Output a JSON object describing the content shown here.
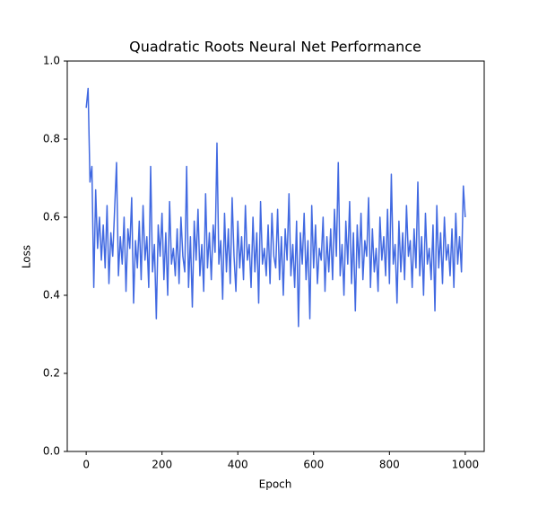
{
  "chart_data": {
    "type": "line",
    "title": "Quadratic Roots Neural Net Performance",
    "x_label": "Epoch",
    "y_label": "Loss",
    "x": [
      0,
      5,
      10,
      15,
      20,
      25,
      30,
      35,
      40,
      45,
      50,
      55,
      60,
      65,
      70,
      75,
      80,
      85,
      90,
      95,
      100,
      105,
      110,
      115,
      120,
      125,
      130,
      135,
      140,
      145,
      150,
      155,
      160,
      165,
      170,
      175,
      180,
      185,
      190,
      195,
      200,
      205,
      210,
      215,
      220,
      225,
      230,
      235,
      240,
      245,
      250,
      255,
      260,
      265,
      270,
      275,
      280,
      285,
      290,
      295,
      300,
      305,
      310,
      315,
      320,
      325,
      330,
      335,
      340,
      345,
      350,
      355,
      360,
      365,
      370,
      375,
      380,
      385,
      390,
      395,
      400,
      405,
      410,
      415,
      420,
      425,
      430,
      435,
      440,
      445,
      450,
      455,
      460,
      465,
      470,
      475,
      480,
      485,
      490,
      495,
      500,
      505,
      510,
      515,
      520,
      525,
      530,
      535,
      540,
      545,
      550,
      555,
      560,
      565,
      570,
      575,
      580,
      585,
      590,
      595,
      600,
      605,
      610,
      615,
      620,
      625,
      630,
      635,
      640,
      645,
      650,
      655,
      660,
      665,
      670,
      675,
      680,
      685,
      690,
      695,
      700,
      705,
      710,
      715,
      720,
      725,
      730,
      735,
      740,
      745,
      750,
      755,
      760,
      765,
      770,
      775,
      780,
      785,
      790,
      795,
      800,
      805,
      810,
      815,
      820,
      825,
      830,
      835,
      840,
      845,
      850,
      855,
      860,
      865,
      870,
      875,
      880,
      885,
      890,
      895,
      900,
      905,
      910,
      915,
      920,
      925,
      930,
      935,
      940,
      945,
      950,
      955,
      960,
      965,
      970,
      975,
      980,
      985,
      990,
      995,
      1000
    ],
    "series": [
      {
        "name": "Loss",
        "color": "#4169e1",
        "values": [
          0.88,
          0.93,
          0.69,
          0.73,
          0.42,
          0.67,
          0.52,
          0.6,
          0.49,
          0.58,
          0.47,
          0.63,
          0.43,
          0.56,
          0.5,
          0.62,
          0.74,
          0.45,
          0.55,
          0.48,
          0.6,
          0.41,
          0.57,
          0.52,
          0.65,
          0.38,
          0.54,
          0.47,
          0.59,
          0.44,
          0.63,
          0.49,
          0.55,
          0.42,
          0.73,
          0.46,
          0.53,
          0.34,
          0.58,
          0.5,
          0.61,
          0.44,
          0.56,
          0.4,
          0.64,
          0.48,
          0.52,
          0.45,
          0.57,
          0.43,
          0.6,
          0.5,
          0.46,
          0.73,
          0.42,
          0.55,
          0.37,
          0.59,
          0.49,
          0.62,
          0.45,
          0.53,
          0.41,
          0.66,
          0.47,
          0.56,
          0.44,
          0.58,
          0.51,
          0.79,
          0.48,
          0.54,
          0.39,
          0.61,
          0.46,
          0.57,
          0.43,
          0.65,
          0.5,
          0.41,
          0.59,
          0.47,
          0.55,
          0.44,
          0.63,
          0.49,
          0.53,
          0.42,
          0.6,
          0.46,
          0.56,
          0.38,
          0.64,
          0.48,
          0.52,
          0.45,
          0.58,
          0.43,
          0.61,
          0.5,
          0.47,
          0.62,
          0.44,
          0.55,
          0.4,
          0.57,
          0.49,
          0.66,
          0.45,
          0.53,
          0.42,
          0.59,
          0.32,
          0.56,
          0.48,
          0.61,
          0.44,
          0.54,
          0.34,
          0.63,
          0.47,
          0.58,
          0.43,
          0.52,
          0.49,
          0.6,
          0.41,
          0.55,
          0.46,
          0.57,
          0.44,
          0.62,
          0.5,
          0.74,
          0.45,
          0.53,
          0.4,
          0.59,
          0.48,
          0.64,
          0.43,
          0.56,
          0.36,
          0.58,
          0.47,
          0.61,
          0.44,
          0.54,
          0.5,
          0.65,
          0.42,
          0.57,
          0.46,
          0.52,
          0.41,
          0.6,
          0.49,
          0.55,
          0.45,
          0.62,
          0.43,
          0.71,
          0.48,
          0.53,
          0.38,
          0.59,
          0.46,
          0.56,
          0.44,
          0.63,
          0.5,
          0.54,
          0.42,
          0.57,
          0.47,
          0.69,
          0.45,
          0.55,
          0.4,
          0.61,
          0.48,
          0.52,
          0.44,
          0.58,
          0.36,
          0.63,
          0.47,
          0.56,
          0.43,
          0.6,
          0.49,
          0.53,
          0.45,
          0.57,
          0.42,
          0.61,
          0.48,
          0.55,
          0.46,
          0.68,
          0.6
        ]
      }
    ],
    "xlim": [
      -50,
      1050
    ],
    "ylim": [
      0,
      1
    ],
    "xticks": [
      0,
      200,
      400,
      600,
      800,
      1000
    ],
    "yticks": [
      {
        "value": 0,
        "label": "0.0"
      },
      {
        "value": 0.2,
        "label": "0.2"
      },
      {
        "value": 0.4,
        "label": "0.4"
      },
      {
        "value": 0.6,
        "label": "0.6"
      },
      {
        "value": 0.8,
        "label": "0.8"
      },
      {
        "value": 1,
        "label": "1.0"
      }
    ]
  }
}
